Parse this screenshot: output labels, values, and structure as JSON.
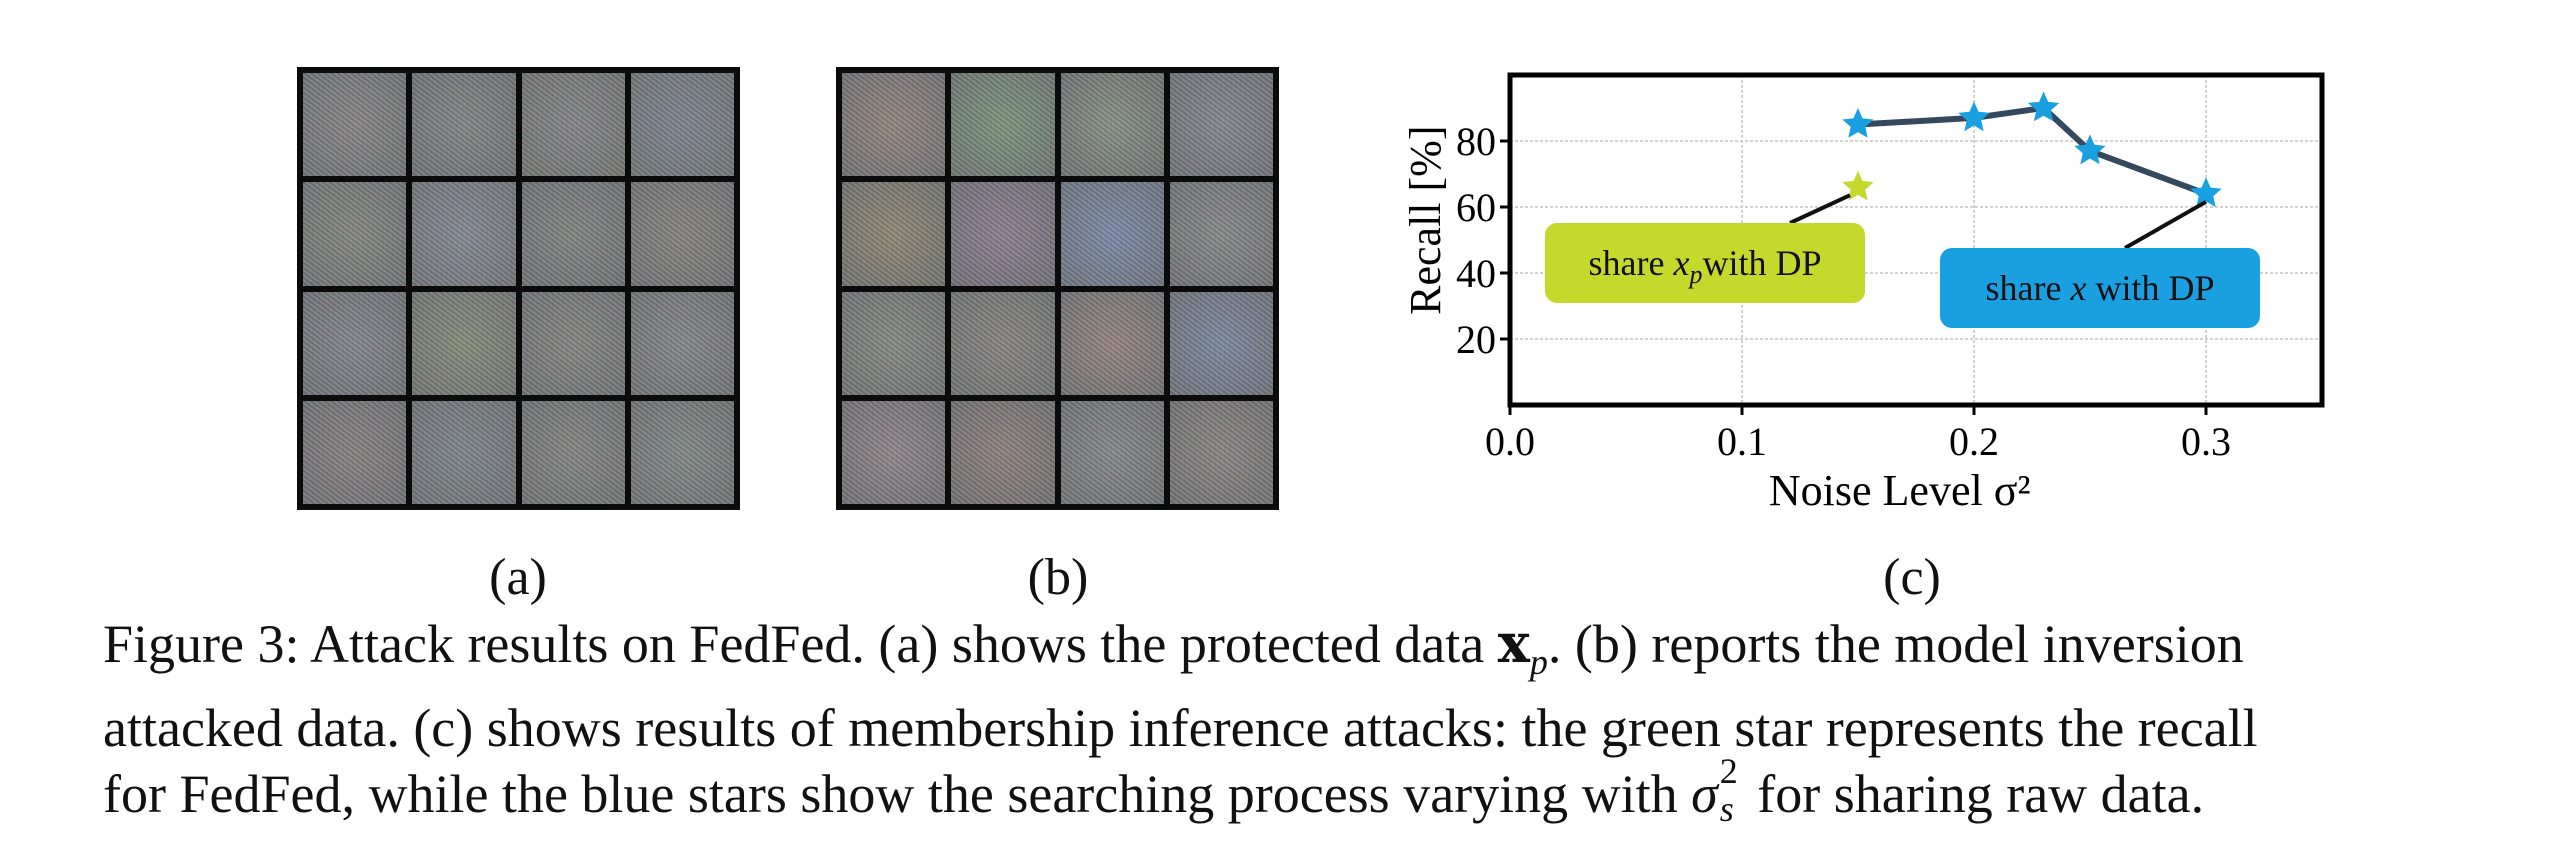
{
  "figure": {
    "panels": {
      "a": {
        "label": "(a)"
      },
      "b": {
        "label": "(b)"
      },
      "c": {
        "label": "(c)"
      }
    },
    "caption": {
      "line1_a": "Figure 3: Attack results on FedFed. (a) shows the protected data ",
      "line1_sym": "x",
      "line1_sub": "p",
      "line1_b": ". (b) reports the model inversion",
      "line2": "attacked data. (c) shows results of membership inference attacks: the green star represents the recall",
      "line3_a": "for FedFed, while the blue stars show the searching process varying with ",
      "line3_sym": "σ",
      "line3_sup": "2",
      "line3_sub": "s",
      "line3_b": " for sharing raw data."
    }
  },
  "chart_data": {
    "type": "line",
    "xlabel": "Noise Level σ²",
    "ylabel": "Recall [%]",
    "xlim": [
      0.0,
      0.35
    ],
    "ylim": [
      0,
      100
    ],
    "x_ticks": [
      "0.0",
      "0.1",
      "0.2",
      "0.3"
    ],
    "y_ticks": [
      "20",
      "40",
      "60",
      "80"
    ],
    "grid": true,
    "series": [
      {
        "name": "share x with DP",
        "color": "#1a9fe0",
        "line_color": "#34495e",
        "marker": "star",
        "x": [
          0.15,
          0.2,
          0.23,
          0.25,
          0.3
        ],
        "y": [
          85,
          87,
          90,
          77,
          64
        ]
      },
      {
        "name": "share x_p with DP",
        "color": "#c5d92d",
        "marker": "star",
        "x": [
          0.15
        ],
        "y": [
          66
        ]
      }
    ],
    "annotations": [
      {
        "text_pre": "share ",
        "text_math": "x",
        "text_sub": "p",
        "text_post": "with DP",
        "color": "#c5d92d",
        "points_to_series": 1
      },
      {
        "text_pre": "share ",
        "text_math": "x",
        "text_sub": "",
        "text_post": " with DP",
        "color": "#1a9fe0",
        "points_to_series": 0
      }
    ]
  }
}
